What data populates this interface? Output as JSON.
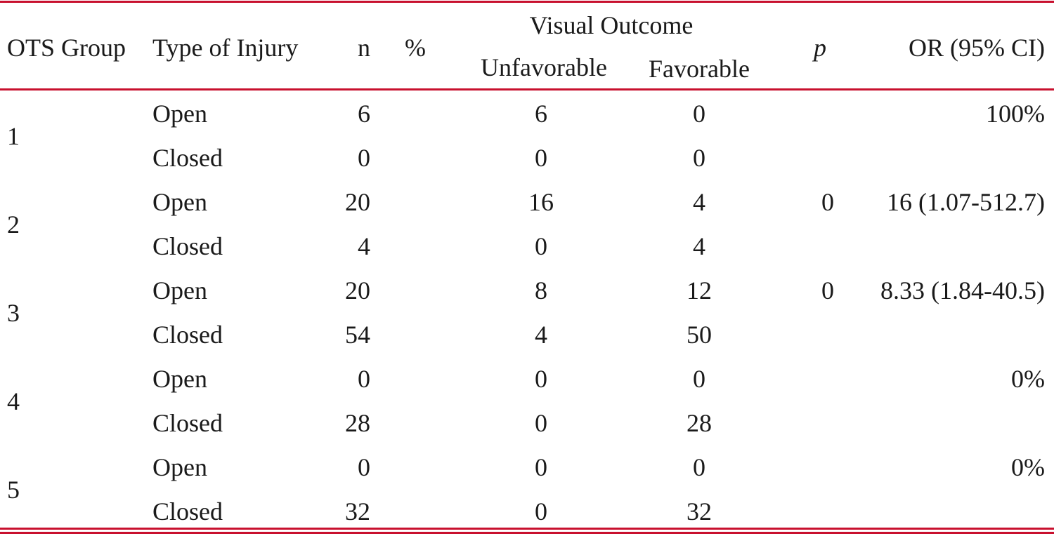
{
  "table": {
    "header": {
      "group": "OTS Group",
      "type": "Type of Injury",
      "n": "n",
      "pct": "%",
      "visual_outcome": "Visual Outcome",
      "unfavorable": "Unfavorable",
      "favorable": "Favorable",
      "p": "p",
      "or": "OR (95% CI)"
    },
    "groups": [
      {
        "group": 1,
        "or": "100%",
        "rows": [
          {
            "type": "Open",
            "n": 6,
            "unfavorable": 6,
            "favorable": 0
          },
          {
            "type": "Closed",
            "n": 0,
            "unfavorable": 0,
            "favorable": 0
          }
        ]
      },
      {
        "group": 2,
        "p": 0,
        "or": "16 (1.07-512.7)",
        "rows": [
          {
            "type": "Open",
            "n": 20,
            "unfavorable": 16,
            "favorable": 4
          },
          {
            "type": "Closed",
            "n": 4,
            "unfavorable": 0,
            "favorable": 4
          }
        ]
      },
      {
        "group": 3,
        "p": 0,
        "or": "8.33 (1.84-40.5)",
        "rows": [
          {
            "type": "Open",
            "n": 20,
            "unfavorable": 8,
            "favorable": 12
          },
          {
            "type": "Closed",
            "n": 54,
            "unfavorable": 4,
            "favorable": 50
          }
        ]
      },
      {
        "group": 4,
        "or": "0%",
        "rows": [
          {
            "type": "Open",
            "n": 0,
            "unfavorable": 0,
            "favorable": 0
          },
          {
            "type": "Closed",
            "n": 28,
            "unfavorable": 0,
            "favorable": 28
          }
        ]
      },
      {
        "group": 5,
        "or": "0%",
        "rows": [
          {
            "type": "Open",
            "n": 0,
            "unfavorable": 0,
            "favorable": 0
          },
          {
            "type": "Closed",
            "n": 32,
            "unfavorable": 0,
            "favorable": 32
          }
        ]
      }
    ]
  }
}
